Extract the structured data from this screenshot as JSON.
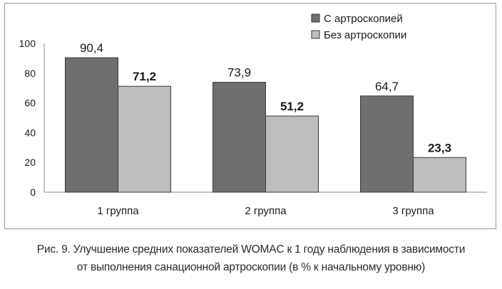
{
  "chart_data": {
    "type": "bar",
    "categories": [
      "1 группа",
      "2 группа",
      "3 группа"
    ],
    "series": [
      {
        "name": "С артроскопией",
        "values": [
          90.4,
          73.9,
          64.7
        ],
        "labels": [
          "90,4",
          "73,9",
          "64,7"
        ],
        "color": "#6f6f6f"
      },
      {
        "name": "Без артроскопии",
        "values": [
          71.2,
          51.2,
          23.3
        ],
        "labels": [
          "71,2",
          "51,2",
          "23,3"
        ],
        "color": "#bdbdbd"
      }
    ],
    "ylim": [
      0,
      100
    ],
    "yticks": [
      0,
      20,
      40,
      60,
      80,
      100
    ],
    "legend": "top-right",
    "grid": false
  },
  "caption": {
    "line1": "Рис. 9. Улучшение средних показателей WOMAC к 1 году наблюдения в зависимости",
    "line2": "от выполнения санационной артроскопии (в % к начальному уровню)"
  }
}
